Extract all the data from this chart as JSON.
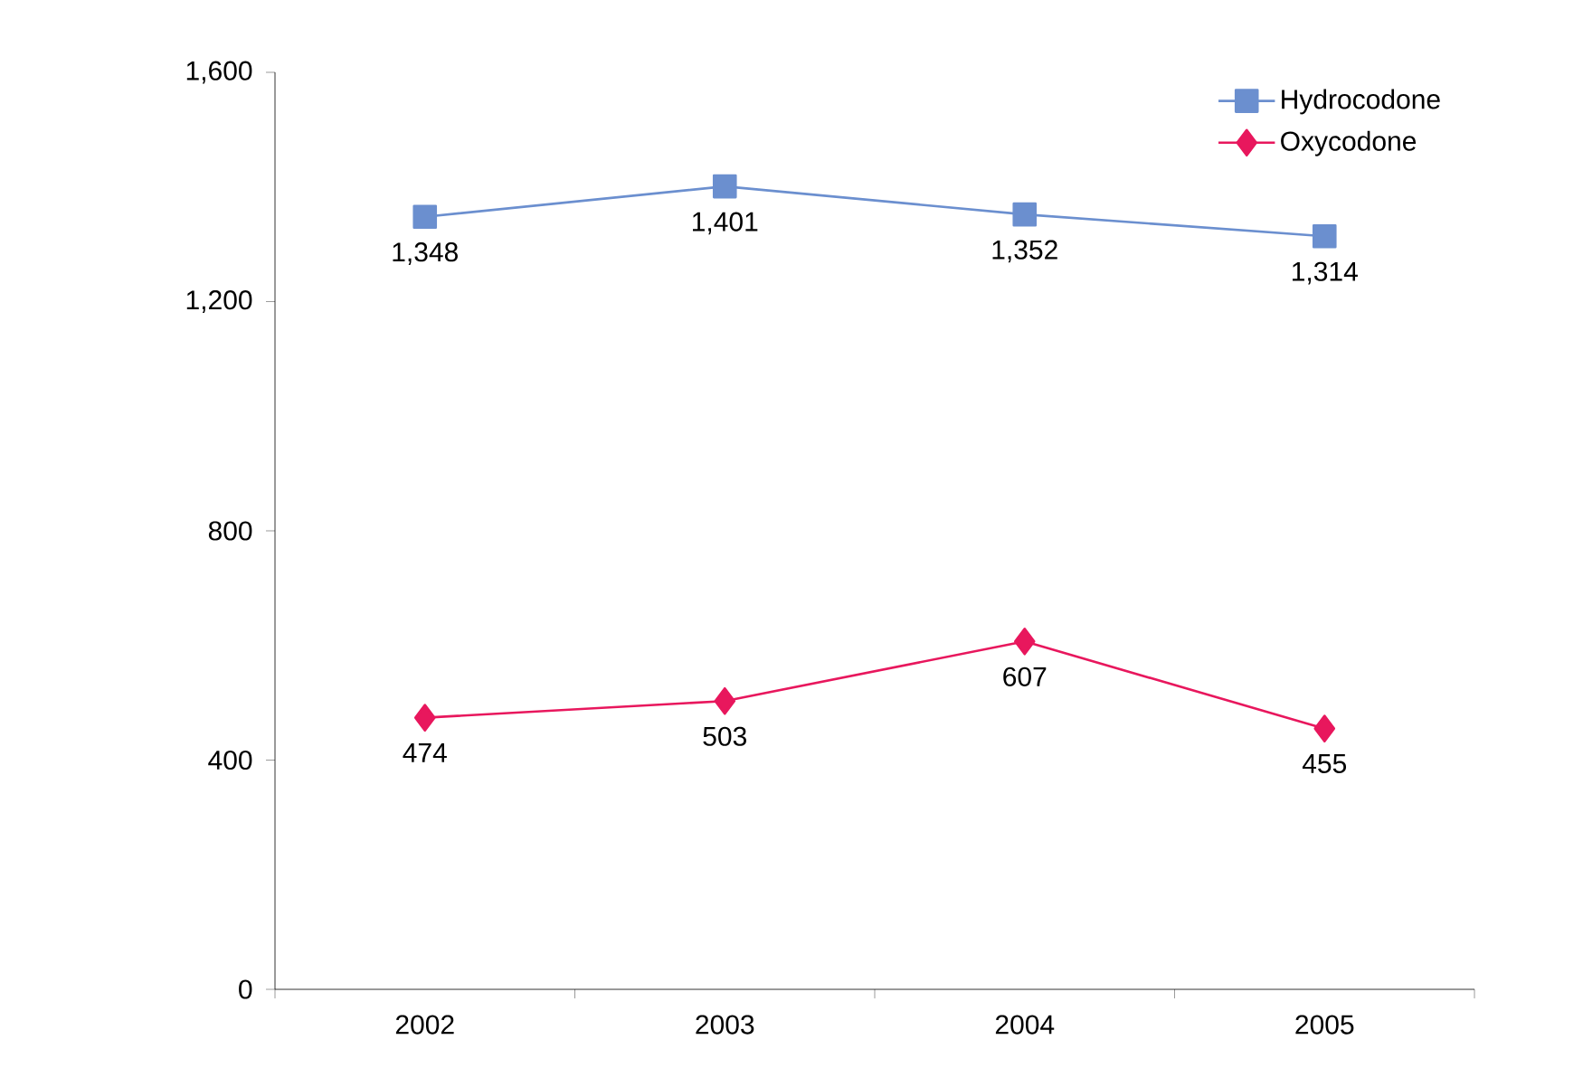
{
  "chart_data": {
    "type": "line",
    "categories": [
      "2002",
      "2003",
      "2004",
      "2005"
    ],
    "series": [
      {
        "name": "Hydrocodone",
        "color": "#6b8fcf",
        "marker": "square",
        "values": [
          1348,
          1401,
          1352,
          1314
        ],
        "value_labels": [
          "1,348",
          "1,401",
          "1,352",
          "1,314"
        ]
      },
      {
        "name": "Oxycodone",
        "color": "#e8175d",
        "marker": "diamond",
        "values": [
          474,
          503,
          607,
          455
        ],
        "value_labels": [
          "474",
          "503",
          "607",
          "455"
        ]
      }
    ],
    "ylim": [
      0,
      1600
    ],
    "yticks": [
      {
        "value": 0,
        "label": "0"
      },
      {
        "value": 400,
        "label": "400"
      },
      {
        "value": 800,
        "label": "800"
      },
      {
        "value": 1200,
        "label": "1,200"
      },
      {
        "value": 1600,
        "label": "1,600"
      }
    ],
    "grid": false,
    "legend": "top right"
  }
}
